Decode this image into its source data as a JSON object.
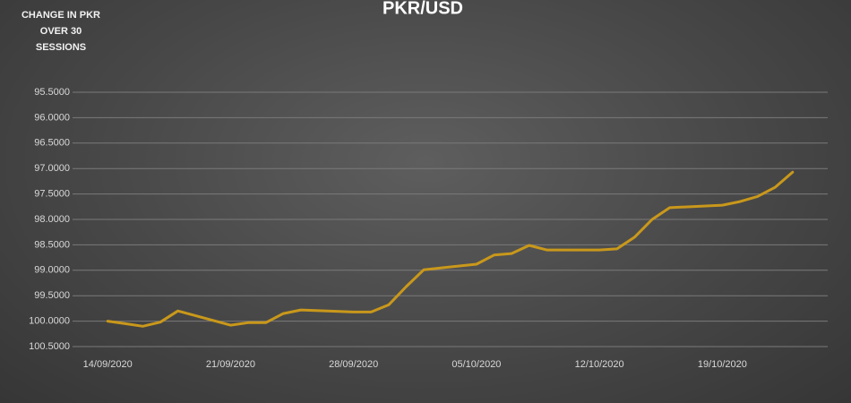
{
  "chart_data": {
    "type": "line",
    "title": "PKR/USD",
    "annotation": "CHANGE IN PKR OVER 30 SESSIONS",
    "x": [
      "14/09/2020",
      "15/09/2020",
      "16/09/2020",
      "17/09/2020",
      "18/09/2020",
      "21/09/2020",
      "22/09/2020",
      "23/09/2020",
      "24/09/2020",
      "25/09/2020",
      "28/09/2020",
      "29/09/2020",
      "30/09/2020",
      "01/10/2020",
      "02/10/2020",
      "05/10/2020",
      "06/10/2020",
      "07/10/2020",
      "08/10/2020",
      "09/10/2020",
      "12/10/2020",
      "13/10/2020",
      "14/10/2020",
      "15/10/2020",
      "16/10/2020",
      "19/10/2020",
      "20/10/2020",
      "21/10/2020",
      "22/10/2020",
      "23/10/2020"
    ],
    "series": [
      {
        "name": "PKR/USD",
        "color": "#c9981b",
        "values": [
          100.0,
          100.05,
          100.1,
          100.02,
          99.8,
          100.08,
          100.03,
          100.03,
          99.85,
          99.78,
          99.82,
          99.82,
          99.68,
          99.32,
          98.99,
          98.88,
          98.7,
          98.67,
          98.51,
          98.6,
          98.6,
          98.58,
          98.35,
          98.0,
          97.77,
          97.72,
          97.65,
          97.55,
          97.37,
          97.07
        ]
      }
    ],
    "xlim": [
      "12/09/2020",
      "25/10/2020"
    ],
    "xticks": [
      "14/09/2020",
      "21/09/2020",
      "28/09/2020",
      "05/10/2020",
      "12/10/2020",
      "19/10/2020"
    ],
    "ylim": [
      100.5,
      95.5
    ],
    "yticks": [
      {
        "value": 95.5,
        "label": "95.5000"
      },
      {
        "value": 96.0,
        "label": "96.0000"
      },
      {
        "value": 96.5,
        "label": "96.5000"
      },
      {
        "value": 97.0,
        "label": "97.0000"
      },
      {
        "value": 97.5,
        "label": "97.5000"
      },
      {
        "value": 98.0,
        "label": "98.0000"
      },
      {
        "value": 98.5,
        "label": "98.5000"
      },
      {
        "value": 99.0,
        "label": "99.0000"
      },
      {
        "value": 99.5,
        "label": "99.5000"
      },
      {
        "value": 100.0,
        "label": "100.0000"
      },
      {
        "value": 100.5,
        "label": "100.5000"
      }
    ],
    "grid": true
  }
}
